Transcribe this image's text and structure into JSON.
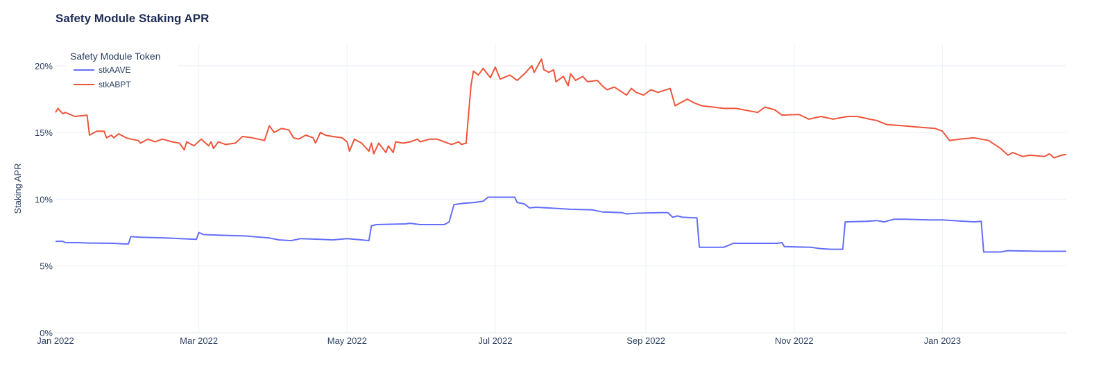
{
  "chart_data": {
    "type": "line",
    "title": "Safety Module Staking APR",
    "xlabel": "",
    "ylabel": "Staking APR",
    "xlim": [
      "2022-01-01",
      "2023-02-21"
    ],
    "ylim": [
      0,
      21.6
    ],
    "x_ticks": [
      {
        "date": "2022-01-01",
        "label": "Jan 2022"
      },
      {
        "date": "2022-03-01",
        "label": "Mar 2022"
      },
      {
        "date": "2022-05-01",
        "label": "May 2022"
      },
      {
        "date": "2022-07-01",
        "label": "Jul 2022"
      },
      {
        "date": "2022-09-01",
        "label": "Sep 2022"
      },
      {
        "date": "2022-11-01",
        "label": "Nov 2022"
      },
      {
        "date": "2023-01-01",
        "label": "Jan 2023"
      }
    ],
    "y_ticks": [
      {
        "value": 0,
        "label": "0%"
      },
      {
        "value": 5,
        "label": "5%"
      },
      {
        "value": 10,
        "label": "10%"
      },
      {
        "value": 15,
        "label": "15%"
      },
      {
        "value": 20,
        "label": "20%"
      }
    ],
    "grid": true,
    "legend": {
      "title": "Safety Module Token",
      "placement": "top-left"
    },
    "series": [
      {
        "name": "stkAAVE",
        "color": "#636efa",
        "points": [
          [
            "2022-01-01",
            6.85
          ],
          [
            "2022-01-04",
            6.85
          ],
          [
            "2022-01-05",
            6.75
          ],
          [
            "2022-01-10",
            6.75
          ],
          [
            "2022-01-15",
            6.72
          ],
          [
            "2022-01-25",
            6.7
          ],
          [
            "2022-01-29",
            6.65
          ],
          [
            "2022-01-31",
            6.65
          ],
          [
            "2022-02-01",
            7.2
          ],
          [
            "2022-02-05",
            7.15
          ],
          [
            "2022-02-15",
            7.1
          ],
          [
            "2022-02-28",
            7.0
          ],
          [
            "2022-03-01",
            7.5
          ],
          [
            "2022-03-03",
            7.35
          ],
          [
            "2022-03-10",
            7.3
          ],
          [
            "2022-03-20",
            7.25
          ],
          [
            "2022-03-30",
            7.1
          ],
          [
            "2022-04-03",
            6.95
          ],
          [
            "2022-04-08",
            6.9
          ],
          [
            "2022-04-12",
            7.05
          ],
          [
            "2022-04-20",
            7.0
          ],
          [
            "2022-04-25",
            6.95
          ],
          [
            "2022-05-01",
            7.05
          ],
          [
            "2022-05-10",
            6.9
          ],
          [
            "2022-05-11",
            8.0
          ],
          [
            "2022-05-13",
            8.1
          ],
          [
            "2022-05-25",
            8.15
          ],
          [
            "2022-05-27",
            8.2
          ],
          [
            "2022-05-31",
            8.1
          ],
          [
            "2022-06-10",
            8.1
          ],
          [
            "2022-06-12",
            8.3
          ],
          [
            "2022-06-14",
            9.6
          ],
          [
            "2022-06-18",
            9.7
          ],
          [
            "2022-06-22",
            9.75
          ],
          [
            "2022-06-26",
            9.85
          ],
          [
            "2022-06-28",
            10.15
          ],
          [
            "2022-07-09",
            10.15
          ],
          [
            "2022-07-10",
            9.75
          ],
          [
            "2022-07-13",
            9.65
          ],
          [
            "2022-07-15",
            9.35
          ],
          [
            "2022-07-18",
            9.4
          ],
          [
            "2022-08-01",
            9.25
          ],
          [
            "2022-08-10",
            9.2
          ],
          [
            "2022-08-14",
            9.05
          ],
          [
            "2022-08-22",
            9.0
          ],
          [
            "2022-08-24",
            8.9
          ],
          [
            "2022-08-28",
            8.95
          ],
          [
            "2022-09-07",
            9.0
          ],
          [
            "2022-09-10",
            9.0
          ],
          [
            "2022-09-12",
            8.65
          ],
          [
            "2022-09-14",
            8.75
          ],
          [
            "2022-09-16",
            8.65
          ],
          [
            "2022-09-22",
            8.6
          ],
          [
            "2022-09-23",
            6.4
          ],
          [
            "2022-10-03",
            6.4
          ],
          [
            "2022-10-05",
            6.55
          ],
          [
            "2022-10-07",
            6.7
          ],
          [
            "2022-10-25",
            6.7
          ],
          [
            "2022-10-27",
            6.75
          ],
          [
            "2022-10-28",
            6.45
          ],
          [
            "2022-11-08",
            6.4
          ],
          [
            "2022-11-12",
            6.3
          ],
          [
            "2022-11-16",
            6.25
          ],
          [
            "2022-11-21",
            6.25
          ],
          [
            "2022-11-22",
            8.3
          ],
          [
            "2022-12-01",
            8.35
          ],
          [
            "2022-12-05",
            8.4
          ],
          [
            "2022-12-08",
            8.3
          ],
          [
            "2022-12-12",
            8.5
          ],
          [
            "2022-12-17",
            8.5
          ],
          [
            "2022-12-26",
            8.45
          ],
          [
            "2023-01-01",
            8.45
          ],
          [
            "2023-01-14",
            8.3
          ],
          [
            "2023-01-17",
            8.35
          ],
          [
            "2023-01-18",
            6.05
          ],
          [
            "2023-01-25",
            6.05
          ],
          [
            "2023-01-28",
            6.15
          ],
          [
            "2023-02-10",
            6.1
          ],
          [
            "2023-02-21",
            6.1
          ]
        ]
      },
      {
        "name": "stkABPT",
        "color": "#ef553b",
        "points": [
          [
            "2022-01-01",
            16.5
          ],
          [
            "2022-01-02",
            16.8
          ],
          [
            "2022-01-04",
            16.4
          ],
          [
            "2022-01-05",
            16.5
          ],
          [
            "2022-01-09",
            16.2
          ],
          [
            "2022-01-14",
            16.3
          ],
          [
            "2022-01-15",
            14.8
          ],
          [
            "2022-01-18",
            15.1
          ],
          [
            "2022-01-21",
            15.1
          ],
          [
            "2022-01-22",
            14.6
          ],
          [
            "2022-01-24",
            14.8
          ],
          [
            "2022-01-25",
            14.6
          ],
          [
            "2022-01-27",
            14.9
          ],
          [
            "2022-01-30",
            14.6
          ],
          [
            "2022-02-01",
            14.5
          ],
          [
            "2022-02-04",
            14.4
          ],
          [
            "2022-02-05",
            14.2
          ],
          [
            "2022-02-08",
            14.5
          ],
          [
            "2022-02-11",
            14.3
          ],
          [
            "2022-02-14",
            14.5
          ],
          [
            "2022-02-18",
            14.3
          ],
          [
            "2022-02-21",
            14.2
          ],
          [
            "2022-02-23",
            13.7
          ],
          [
            "2022-02-24",
            14.3
          ],
          [
            "2022-02-27",
            14.0
          ],
          [
            "2022-03-02",
            14.5
          ],
          [
            "2022-03-05",
            14.0
          ],
          [
            "2022-03-06",
            14.3
          ],
          [
            "2022-03-07",
            13.8
          ],
          [
            "2022-03-09",
            14.3
          ],
          [
            "2022-03-12",
            14.1
          ],
          [
            "2022-03-16",
            14.2
          ],
          [
            "2022-03-19",
            14.7
          ],
          [
            "2022-03-23",
            14.6
          ],
          [
            "2022-03-28",
            14.4
          ],
          [
            "2022-03-30",
            15.5
          ],
          [
            "2022-04-01",
            15.0
          ],
          [
            "2022-04-04",
            15.3
          ],
          [
            "2022-04-07",
            15.2
          ],
          [
            "2022-04-09",
            14.6
          ],
          [
            "2022-04-11",
            14.5
          ],
          [
            "2022-04-14",
            14.8
          ],
          [
            "2022-04-17",
            14.6
          ],
          [
            "2022-04-18",
            14.2
          ],
          [
            "2022-04-20",
            15.0
          ],
          [
            "2022-04-22",
            14.8
          ],
          [
            "2022-04-25",
            14.7
          ],
          [
            "2022-04-29",
            14.6
          ],
          [
            "2022-05-01",
            14.3
          ],
          [
            "2022-05-02",
            13.6
          ],
          [
            "2022-05-04",
            14.5
          ],
          [
            "2022-05-07",
            14.2
          ],
          [
            "2022-05-10",
            13.6
          ],
          [
            "2022-05-11",
            14.2
          ],
          [
            "2022-05-12",
            13.4
          ],
          [
            "2022-05-14",
            14.2
          ],
          [
            "2022-05-17",
            13.5
          ],
          [
            "2022-05-18",
            14.0
          ],
          [
            "2022-05-20",
            13.5
          ],
          [
            "2022-05-21",
            14.3
          ],
          [
            "2022-05-24",
            14.2
          ],
          [
            "2022-05-27",
            14.3
          ],
          [
            "2022-05-30",
            14.5
          ],
          [
            "2022-05-31",
            14.3
          ],
          [
            "2022-06-04",
            14.5
          ],
          [
            "2022-06-07",
            14.5
          ],
          [
            "2022-06-10",
            14.3
          ],
          [
            "2022-06-13",
            14.1
          ],
          [
            "2022-06-16",
            14.3
          ],
          [
            "2022-06-17",
            14.1
          ],
          [
            "2022-06-19",
            14.2
          ],
          [
            "2022-06-21",
            18.5
          ],
          [
            "2022-06-22",
            19.6
          ],
          [
            "2022-06-24",
            19.3
          ],
          [
            "2022-06-26",
            19.8
          ],
          [
            "2022-06-29",
            19.1
          ],
          [
            "2022-07-01",
            19.9
          ],
          [
            "2022-07-03",
            19.0
          ],
          [
            "2022-07-07",
            19.3
          ],
          [
            "2022-07-10",
            18.9
          ],
          [
            "2022-07-13",
            19.4
          ],
          [
            "2022-07-16",
            20.0
          ],
          [
            "2022-07-17",
            19.5
          ],
          [
            "2022-07-20",
            20.5
          ],
          [
            "2022-07-21",
            19.7
          ],
          [
            "2022-07-23",
            19.5
          ],
          [
            "2022-07-25",
            19.7
          ],
          [
            "2022-07-26",
            18.8
          ],
          [
            "2022-07-29",
            19.2
          ],
          [
            "2022-07-31",
            18.5
          ],
          [
            "2022-08-01",
            19.4
          ],
          [
            "2022-08-03",
            18.9
          ],
          [
            "2022-08-06",
            19.2
          ],
          [
            "2022-08-08",
            18.8
          ],
          [
            "2022-08-12",
            18.9
          ],
          [
            "2022-08-14",
            18.5
          ],
          [
            "2022-08-16",
            18.2
          ],
          [
            "2022-08-19",
            18.4
          ],
          [
            "2022-08-24",
            17.8
          ],
          [
            "2022-08-26",
            18.3
          ],
          [
            "2022-08-28",
            18.0
          ],
          [
            "2022-08-31",
            17.8
          ],
          [
            "2022-09-03",
            18.2
          ],
          [
            "2022-09-06",
            18.0
          ],
          [
            "2022-09-11",
            18.3
          ],
          [
            "2022-09-13",
            17.0
          ],
          [
            "2022-09-15",
            17.2
          ],
          [
            "2022-09-18",
            17.5
          ],
          [
            "2022-09-21",
            17.2
          ],
          [
            "2022-09-24",
            17.0
          ],
          [
            "2022-10-03",
            16.8
          ],
          [
            "2022-10-08",
            16.8
          ],
          [
            "2022-10-17",
            16.5
          ],
          [
            "2022-10-20",
            16.9
          ],
          [
            "2022-10-24",
            16.7
          ],
          [
            "2022-10-27",
            16.3
          ],
          [
            "2022-11-03",
            16.35
          ],
          [
            "2022-11-07",
            16.0
          ],
          [
            "2022-11-12",
            16.2
          ],
          [
            "2022-11-17",
            16.0
          ],
          [
            "2022-11-23",
            16.2
          ],
          [
            "2022-11-27",
            16.2
          ],
          [
            "2022-12-02",
            16.0
          ],
          [
            "2022-12-05",
            15.9
          ],
          [
            "2022-12-09",
            15.6
          ],
          [
            "2022-12-16",
            15.5
          ],
          [
            "2022-12-22",
            15.4
          ],
          [
            "2022-12-29",
            15.3
          ],
          [
            "2023-01-01",
            15.1
          ],
          [
            "2023-01-04",
            14.4
          ],
          [
            "2023-01-08",
            14.5
          ],
          [
            "2023-01-14",
            14.6
          ],
          [
            "2023-01-20",
            14.4
          ],
          [
            "2023-01-25",
            13.8
          ],
          [
            "2023-01-28",
            13.3
          ],
          [
            "2023-01-30",
            13.5
          ],
          [
            "2023-02-03",
            13.2
          ],
          [
            "2023-02-06",
            13.3
          ],
          [
            "2023-02-12",
            13.2
          ],
          [
            "2023-02-14",
            13.4
          ],
          [
            "2023-02-16",
            13.1
          ],
          [
            "2023-02-19",
            13.3
          ],
          [
            "2023-02-21",
            13.35
          ]
        ]
      }
    ]
  }
}
